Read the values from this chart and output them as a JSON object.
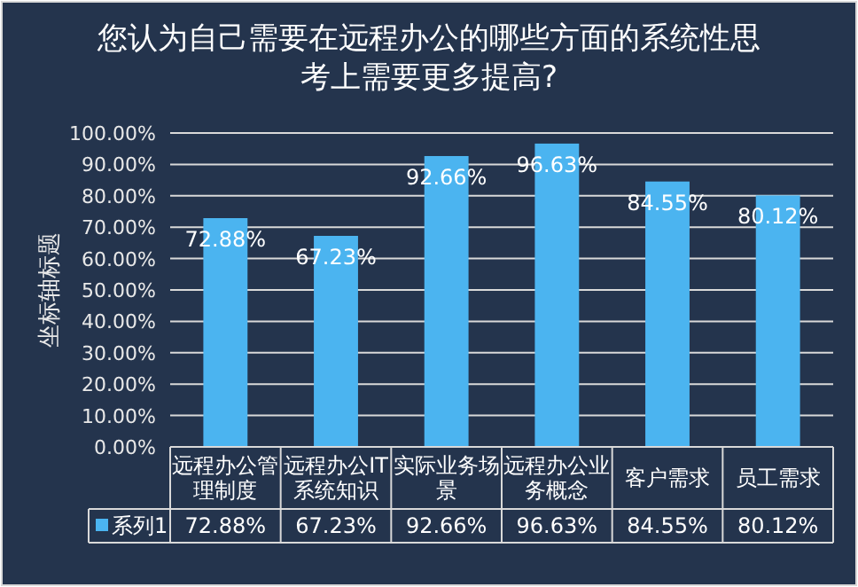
{
  "chart_data": {
    "type": "bar",
    "title": "您认为自己需要在远程办公的哪些方面的系统性思考上需要更多提高?",
    "ylabel": "坐标轴标题",
    "categories": [
      "远程办公管理制度",
      "远程办公IT系统知识",
      "实际业务场景",
      "远程办公业务概念",
      "客户需求",
      "员工需求"
    ],
    "series": [
      {
        "name": "系列1",
        "color": "#4bb4f0",
        "values": [
          72.88,
          67.23,
          92.66,
          96.63,
          84.55,
          80.12
        ],
        "value_labels": [
          "72.88%",
          "67.23%",
          "92.66%",
          "96.63%",
          "84.55%",
          "80.12%"
        ]
      }
    ],
    "ylim": [
      0,
      100
    ],
    "yticks": [
      {
        "value": 0,
        "label": "0.00%"
      },
      {
        "value": 10,
        "label": "10.00%"
      },
      {
        "value": 20,
        "label": "20.00%"
      },
      {
        "value": 30,
        "label": "30.00%"
      },
      {
        "value": 40,
        "label": "40.00%"
      },
      {
        "value": 50,
        "label": "50.00%"
      },
      {
        "value": 60,
        "label": "60.00%"
      },
      {
        "value": 70,
        "label": "70.00%"
      },
      {
        "value": 80,
        "label": "80.00%"
      },
      {
        "value": 90,
        "label": "90.00%"
      },
      {
        "value": 100,
        "label": "100.00%"
      }
    ],
    "grid": "y",
    "legend": "bottom"
  }
}
